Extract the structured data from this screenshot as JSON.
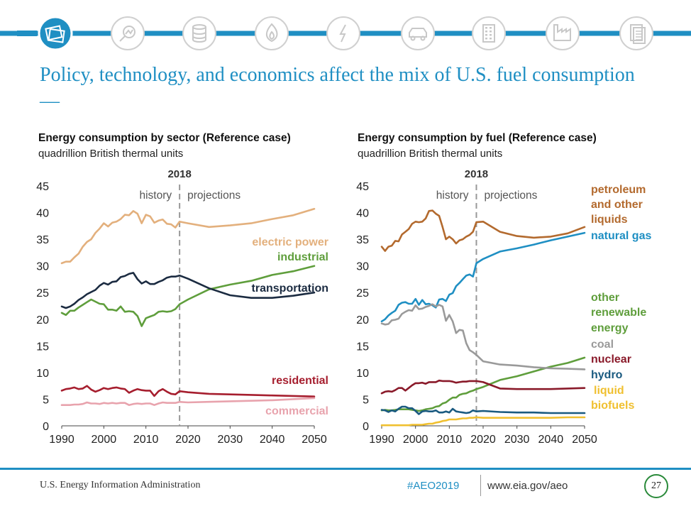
{
  "header": {
    "title": "Policy, technology, and economics affect the mix of U.S. fuel consumption—",
    "nav_icons": [
      "overview-icon",
      "analysis-icon",
      "database-icon",
      "flame-icon",
      "lightning-icon",
      "car-icon",
      "building-icon",
      "factory-icon",
      "document-icon"
    ],
    "accent_color": "#1f8fc3",
    "active_icon_color": "#1f8fc3",
    "inactive_icon_color": "#c8c8c8"
  },
  "footer": {
    "organization": "U.S. Energy Information Administration",
    "hashtag": "#AEO2019",
    "url": "www.eia.gov/aeo",
    "page_number": "27",
    "page_circle_color": "#2a8a3a"
  },
  "chart_data": [
    {
      "type": "line",
      "title": "Energy consumption by sector (Reference case)",
      "units": "quadrillion British thermal units",
      "divider_year": "2018",
      "history_label": "history",
      "projections_label": "projections",
      "xlim": [
        1990,
        2050
      ],
      "ylim": [
        0,
        45
      ],
      "x_ticks": [
        "1990",
        "2000",
        "2010",
        "2020",
        "2030",
        "2040",
        "2050"
      ],
      "y_ticks": [
        "0",
        "5",
        "10",
        "15",
        "20",
        "25",
        "30",
        "35",
        "40",
        "45"
      ],
      "x": [
        1990,
        1991,
        1992,
        1993,
        1994,
        1995,
        1996,
        1997,
        1998,
        1999,
        2000,
        2001,
        2002,
        2003,
        2004,
        2005,
        2006,
        2007,
        2008,
        2009,
        2010,
        2011,
        2012,
        2013,
        2014,
        2015,
        2016,
        2017,
        2018,
        2020,
        2025,
        2030,
        2035,
        2040,
        2045,
        2050
      ],
      "series": [
        {
          "name": "electric power",
          "color": "#e3b07d",
          "values": [
            30.5,
            30.8,
            30.8,
            31.6,
            32.3,
            33.6,
            34.5,
            35.0,
            36.2,
            37.0,
            38.0,
            37.4,
            38.1,
            38.3,
            38.8,
            39.6,
            39.5,
            40.3,
            39.8,
            38.0,
            39.6,
            39.3,
            38.1,
            38.5,
            38.7,
            37.9,
            37.8,
            37.2,
            38.3,
            38.0,
            37.3,
            37.6,
            38.0,
            38.8,
            39.5,
            40.7
          ]
        },
        {
          "name": "industrial",
          "color": "#5f9e3c",
          "values": [
            21.2,
            20.8,
            21.6,
            21.6,
            22.2,
            22.7,
            23.2,
            23.7,
            23.3,
            22.9,
            22.8,
            21.8,
            21.8,
            21.6,
            22.4,
            21.4,
            21.5,
            21.4,
            20.6,
            18.7,
            20.2,
            20.5,
            20.8,
            21.4,
            21.5,
            21.4,
            21.5,
            21.9,
            22.8,
            23.7,
            25.6,
            26.5,
            27.2,
            28.3,
            29.0,
            30.0
          ]
        },
        {
          "name": "transportation",
          "color": "#1b2b41",
          "values": [
            22.4,
            22.1,
            22.4,
            22.9,
            23.6,
            24.1,
            24.7,
            25.1,
            25.5,
            26.3,
            26.8,
            26.5,
            27.0,
            27.1,
            27.9,
            28.1,
            28.5,
            28.7,
            27.5,
            26.7,
            27.1,
            26.6,
            26.6,
            27.0,
            27.3,
            27.8,
            28.0,
            28.0,
            28.2,
            27.6,
            25.8,
            24.5,
            24.0,
            24.0,
            24.4,
            25.0
          ]
        },
        {
          "name": "residential",
          "color": "#a61e2e",
          "values": [
            6.6,
            6.9,
            7.0,
            7.2,
            6.9,
            7.0,
            7.5,
            6.8,
            6.4,
            6.7,
            7.1,
            6.9,
            7.1,
            7.2,
            7.0,
            6.9,
            6.2,
            6.6,
            6.9,
            6.7,
            6.6,
            6.6,
            5.6,
            6.5,
            6.9,
            6.4,
            6.0,
            5.9,
            6.5,
            6.3,
            6.0,
            5.9,
            5.8,
            5.7,
            5.6,
            5.5
          ]
        },
        {
          "name": "commercial",
          "color": "#e8a3ad",
          "values": [
            3.9,
            3.9,
            3.9,
            4.0,
            4.0,
            4.1,
            4.4,
            4.2,
            4.2,
            4.1,
            4.3,
            4.2,
            4.3,
            4.2,
            4.3,
            4.3,
            3.9,
            4.1,
            4.2,
            4.1,
            4.2,
            4.2,
            3.9,
            4.2,
            4.4,
            4.3,
            4.3,
            4.3,
            4.5,
            4.4,
            4.5,
            4.6,
            4.7,
            4.8,
            5.0,
            5.2
          ]
        }
      ],
      "legend_labels": [
        "electric power",
        "industrial",
        "transportation",
        "residential",
        "commercial"
      ]
    },
    {
      "type": "line",
      "title": "Energy consumption by fuel (Reference case)",
      "units": "quadrillion British thermal units",
      "divider_year": "2018",
      "history_label": "history",
      "projections_label": "projections",
      "xlim": [
        1990,
        2050
      ],
      "ylim": [
        0,
        45
      ],
      "x_ticks": [
        "1990",
        "2000",
        "2010",
        "2020",
        "2030",
        "2040",
        "2050"
      ],
      "y_ticks": [
        "0",
        "5",
        "10",
        "15",
        "20",
        "25",
        "30",
        "35",
        "40",
        "45"
      ],
      "x": [
        1990,
        1991,
        1992,
        1993,
        1994,
        1995,
        1996,
        1997,
        1998,
        1999,
        2000,
        2001,
        2002,
        2003,
        2004,
        2005,
        2006,
        2007,
        2008,
        2009,
        2010,
        2011,
        2012,
        2013,
        2014,
        2015,
        2016,
        2017,
        2018,
        2020,
        2025,
        2030,
        2035,
        2040,
        2045,
        2050
      ],
      "series": [
        {
          "name": "petroleum and other liquids",
          "color": "#b36a2e",
          "values": [
            33.6,
            32.8,
            33.6,
            33.8,
            34.7,
            34.6,
            35.9,
            36.4,
            36.9,
            37.9,
            38.3,
            38.2,
            38.3,
            38.9,
            40.3,
            40.4,
            39.8,
            39.4,
            37.3,
            35.0,
            35.5,
            35.0,
            34.2,
            34.8,
            35.0,
            35.5,
            35.8,
            36.4,
            38.2,
            38.3,
            36.4,
            35.6,
            35.3,
            35.5,
            36.1,
            37.3
          ]
        },
        {
          "name": "natural gas",
          "color": "#1f8fc3",
          "values": [
            19.6,
            20.0,
            20.7,
            21.2,
            21.6,
            22.7,
            23.1,
            23.2,
            22.9,
            22.9,
            23.8,
            22.7,
            23.6,
            22.8,
            22.9,
            22.6,
            22.2,
            23.7,
            23.8,
            23.4,
            24.6,
            24.9,
            26.2,
            26.8,
            27.5,
            28.2,
            28.4,
            28.0,
            30.5,
            31.3,
            32.7,
            33.3,
            34.0,
            34.8,
            35.5,
            36.2
          ]
        },
        {
          "name": "other renewable energy",
          "color": "#5f9e3c",
          "values": [
            2.9,
            3.0,
            2.9,
            2.9,
            3.0,
            3.1,
            3.1,
            3.1,
            3.1,
            3.0,
            2.9,
            2.8,
            2.9,
            3.1,
            3.2,
            3.3,
            3.6,
            3.7,
            4.2,
            4.4,
            4.9,
            5.3,
            5.3,
            5.8,
            6.0,
            6.1,
            6.4,
            6.6,
            6.9,
            7.3,
            8.6,
            9.3,
            10.2,
            11.1,
            11.8,
            12.8
          ]
        },
        {
          "name": "coal",
          "color": "#9a9a9a",
          "values": [
            19.2,
            19.0,
            19.1,
            19.8,
            19.9,
            20.1,
            21.0,
            21.4,
            21.7,
            21.6,
            22.6,
            21.9,
            22.0,
            22.3,
            22.5,
            22.8,
            22.4,
            22.7,
            22.4,
            19.7,
            20.8,
            19.6,
            17.4,
            18.0,
            17.9,
            15.5,
            14.2,
            13.8,
            13.3,
            12.1,
            11.5,
            11.3,
            11.0,
            10.8,
            10.7,
            10.6
          ]
        },
        {
          "name": "nuclear",
          "color": "#8a1a2a",
          "values": [
            6.1,
            6.4,
            6.5,
            6.4,
            6.7,
            7.1,
            7.1,
            6.6,
            7.1,
            7.6,
            8.0,
            8.0,
            8.1,
            7.9,
            8.2,
            8.2,
            8.2,
            8.5,
            8.4,
            8.4,
            8.4,
            8.3,
            8.1,
            8.2,
            8.3,
            8.3,
            8.4,
            8.4,
            8.4,
            8.2,
            7.0,
            6.9,
            6.9,
            6.9,
            7.0,
            7.1
          ]
        },
        {
          "name": "hydro",
          "color": "#1a5a80",
          "values": [
            3.0,
            2.9,
            2.6,
            2.9,
            2.7,
            3.2,
            3.6,
            3.6,
            3.3,
            3.3,
            2.8,
            2.2,
            2.7,
            2.8,
            2.7,
            2.7,
            2.9,
            2.5,
            2.5,
            2.7,
            2.5,
            3.2,
            2.7,
            2.6,
            2.5,
            2.4,
            2.5,
            2.9,
            2.7,
            2.8,
            2.6,
            2.5,
            2.5,
            2.4,
            2.4,
            2.4
          ]
        },
        {
          "name": "liquid biofuels",
          "color": "#f0c030",
          "values": [
            0.1,
            0.1,
            0.1,
            0.1,
            0.1,
            0.1,
            0.1,
            0.1,
            0.1,
            0.2,
            0.2,
            0.2,
            0.2,
            0.3,
            0.4,
            0.4,
            0.6,
            0.7,
            0.9,
            1.0,
            1.2,
            1.2,
            1.2,
            1.3,
            1.4,
            1.4,
            1.5,
            1.5,
            1.6,
            1.5,
            1.5,
            1.5,
            1.5,
            1.5,
            1.6,
            1.6
          ]
        }
      ],
      "legend_labels": [
        "petroleum",
        "and other",
        "liquids",
        "natural gas",
        "other",
        "renewable",
        "energy",
        "coal",
        "nuclear",
        "hydro",
        "liquid",
        "biofuels"
      ]
    }
  ]
}
